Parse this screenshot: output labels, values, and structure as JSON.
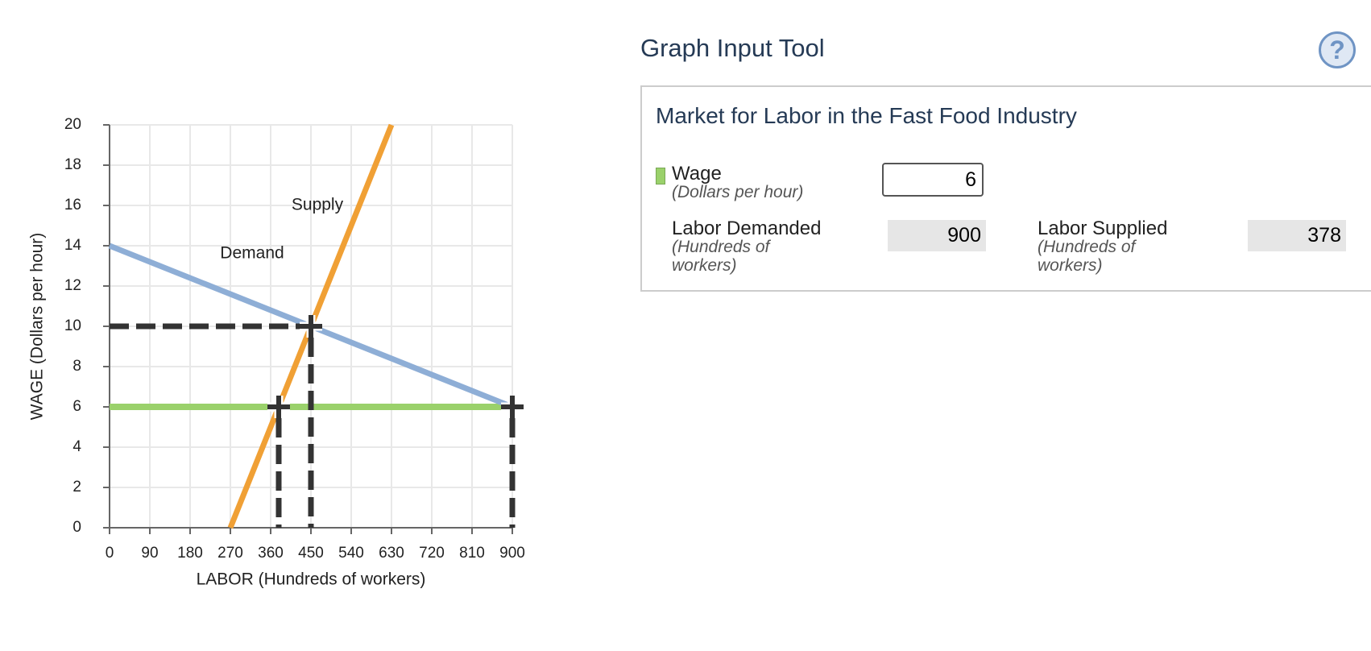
{
  "chart_data": {
    "type": "line",
    "xlabel": "LABOR (Hundreds of workers)",
    "ylabel": "WAGE (Dollars per hour)",
    "xlim": [
      0,
      900
    ],
    "ylim": [
      0,
      20
    ],
    "xticks": [
      0,
      90,
      180,
      270,
      360,
      450,
      540,
      630,
      720,
      810,
      900
    ],
    "yticks": [
      0,
      2,
      4,
      6,
      8,
      10,
      12,
      14,
      16,
      18,
      20
    ],
    "grid": true,
    "series": [
      {
        "name": "Supply",
        "color": "#f0a035",
        "x": [
          270,
          630
        ],
        "values": [
          0,
          20
        ]
      },
      {
        "name": "Demand",
        "color": "#8eaed6",
        "x": [
          0,
          900
        ],
        "values": [
          14,
          6
        ]
      }
    ],
    "wage_line": {
      "color": "#9ad16b",
      "x": [
        0,
        900
      ],
      "values": [
        6,
        6
      ]
    },
    "points": [
      {
        "x": 450,
        "y": 10,
        "horizontal_guide": true
      },
      {
        "x": 378,
        "y": 6,
        "horizontal_guide": false
      },
      {
        "x": 900,
        "y": 6,
        "horizontal_guide": false
      }
    ]
  },
  "panel": {
    "tool_title": "Graph Input Tool",
    "help_icon": "?",
    "title": "Market for Labor in the Fast Food Industry",
    "wage": {
      "label": "Wage",
      "unit": "(Dollars per hour)",
      "value": 6
    },
    "labor_demanded": {
      "label": "Labor Demanded",
      "unit": "(Hundreds of workers)",
      "value": 900
    },
    "labor_supplied": {
      "label": "Labor Supplied",
      "unit": "(Hundreds of workers)",
      "value": 378
    }
  }
}
